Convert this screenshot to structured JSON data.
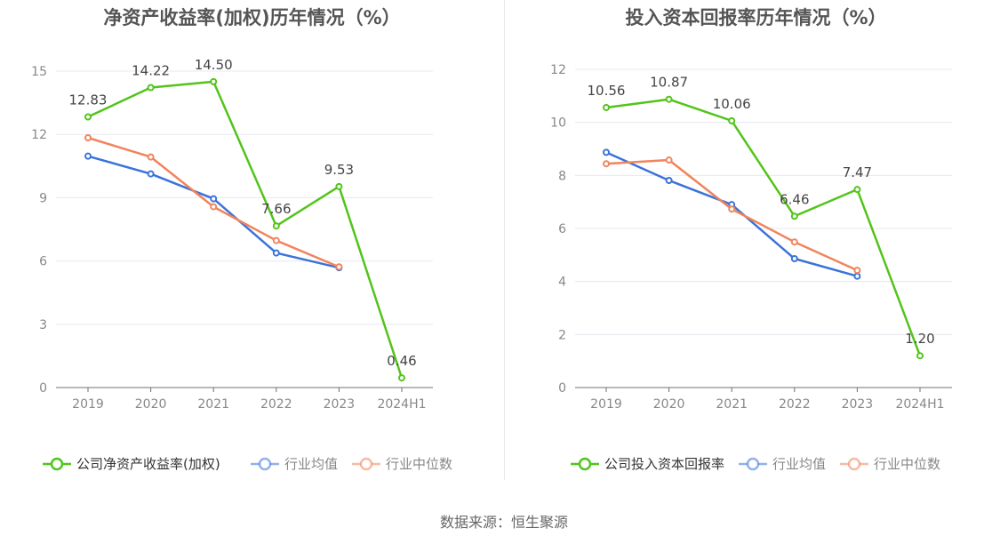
{
  "footer": {
    "source": "数据来源：恒生聚源"
  },
  "chart_data": [
    {
      "type": "line",
      "title": "净资产收益率(加权)历年情况（%）",
      "categories": [
        "2019",
        "2020",
        "2021",
        "2022",
        "2023",
        "2024H1"
      ],
      "yticks": [
        "0",
        "3",
        "6",
        "9",
        "12",
        "15"
      ],
      "ylim": [
        0,
        15
      ],
      "grid": true,
      "legend_position": "bottom",
      "series": [
        {
          "name": "公司净资产收益率(加权)",
          "color": "#52c41a",
          "values": [
            12.83,
            14.22,
            14.5,
            7.66,
            9.53,
            0.46
          ],
          "labels": [
            "12.83",
            "14.22",
            "14.50",
            "7.66",
            "9.53",
            "0.46"
          ]
        },
        {
          "name": "行业均值",
          "color": "#3b73d9",
          "values": [
            10.97,
            10.13,
            8.95,
            6.38,
            5.68,
            null
          ]
        },
        {
          "name": "行业中位数",
          "color": "#f0845d",
          "values": [
            11.84,
            10.93,
            8.57,
            6.97,
            5.72,
            null
          ]
        }
      ]
    },
    {
      "type": "line",
      "title": "投入资本回报率历年情况（%）",
      "categories": [
        "2019",
        "2020",
        "2021",
        "2022",
        "2023",
        "2024H1"
      ],
      "yticks": [
        "0",
        "2",
        "4",
        "6",
        "8",
        "10",
        "12"
      ],
      "ylim": [
        0,
        12
      ],
      "grid": true,
      "legend_position": "bottom",
      "series": [
        {
          "name": "公司投入资本回报率",
          "color": "#52c41a",
          "values": [
            10.56,
            10.87,
            10.06,
            6.46,
            7.47,
            1.2
          ],
          "labels": [
            "10.56",
            "10.87",
            "10.06",
            "6.46",
            "7.47",
            "1.20"
          ]
        },
        {
          "name": "行业均值",
          "color": "#3b73d9",
          "values": [
            8.87,
            7.81,
            6.9,
            4.86,
            4.2,
            null
          ]
        },
        {
          "name": "行业中位数",
          "color": "#f0845d",
          "values": [
            8.44,
            8.58,
            6.73,
            5.49,
            4.42,
            null
          ]
        }
      ]
    }
  ]
}
